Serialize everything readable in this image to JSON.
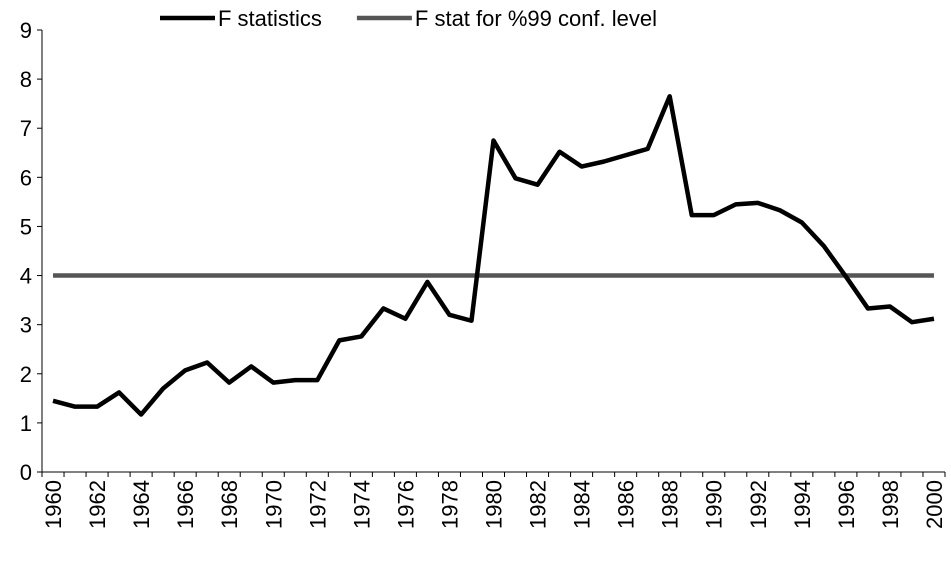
{
  "chart_data": {
    "type": "line",
    "categories": [
      "1960",
      null,
      "1962",
      null,
      "1964",
      null,
      "1966",
      null,
      "1968",
      null,
      "1970",
      null,
      "1972",
      null,
      "1974",
      null,
      "1976",
      null,
      "1978",
      null,
      "1980",
      null,
      "1982",
      null,
      "1984",
      null,
      "1986",
      null,
      "1988",
      null,
      "1990",
      null,
      "1992",
      null,
      "1994",
      null,
      "1996",
      null,
      "1998",
      null,
      "2000"
    ],
    "series": [
      {
        "name": "F statistics",
        "color": "#000000",
        "values": [
          1.45,
          1.33,
          1.33,
          1.62,
          1.17,
          1.7,
          2.07,
          2.23,
          1.82,
          2.15,
          1.82,
          1.87,
          1.87,
          2.68,
          2.76,
          3.33,
          3.12,
          3.87,
          3.2,
          3.08,
          6.75,
          5.98,
          5.85,
          6.52,
          6.22,
          6.32,
          6.45,
          6.58,
          7.65,
          5.23,
          5.23,
          5.45,
          5.48,
          5.33,
          5.08,
          4.6,
          3.98,
          3.33,
          3.37,
          3.05,
          3.12
        ]
      },
      {
        "name": "F stat for %99 conf. level",
        "color": "#555555",
        "values": [
          4,
          4,
          4,
          4,
          4,
          4,
          4,
          4,
          4,
          4,
          4,
          4,
          4,
          4,
          4,
          4,
          4,
          4,
          4,
          4,
          4,
          4,
          4,
          4,
          4,
          4,
          4,
          4,
          4,
          4,
          4,
          4,
          4,
          4,
          4,
          4,
          4,
          4,
          4,
          4,
          4
        ]
      }
    ],
    "ylim": [
      0,
      9
    ],
    "yticks": [
      0,
      1,
      2,
      3,
      4,
      5,
      6,
      7,
      8,
      9
    ],
    "legend": "top"
  }
}
